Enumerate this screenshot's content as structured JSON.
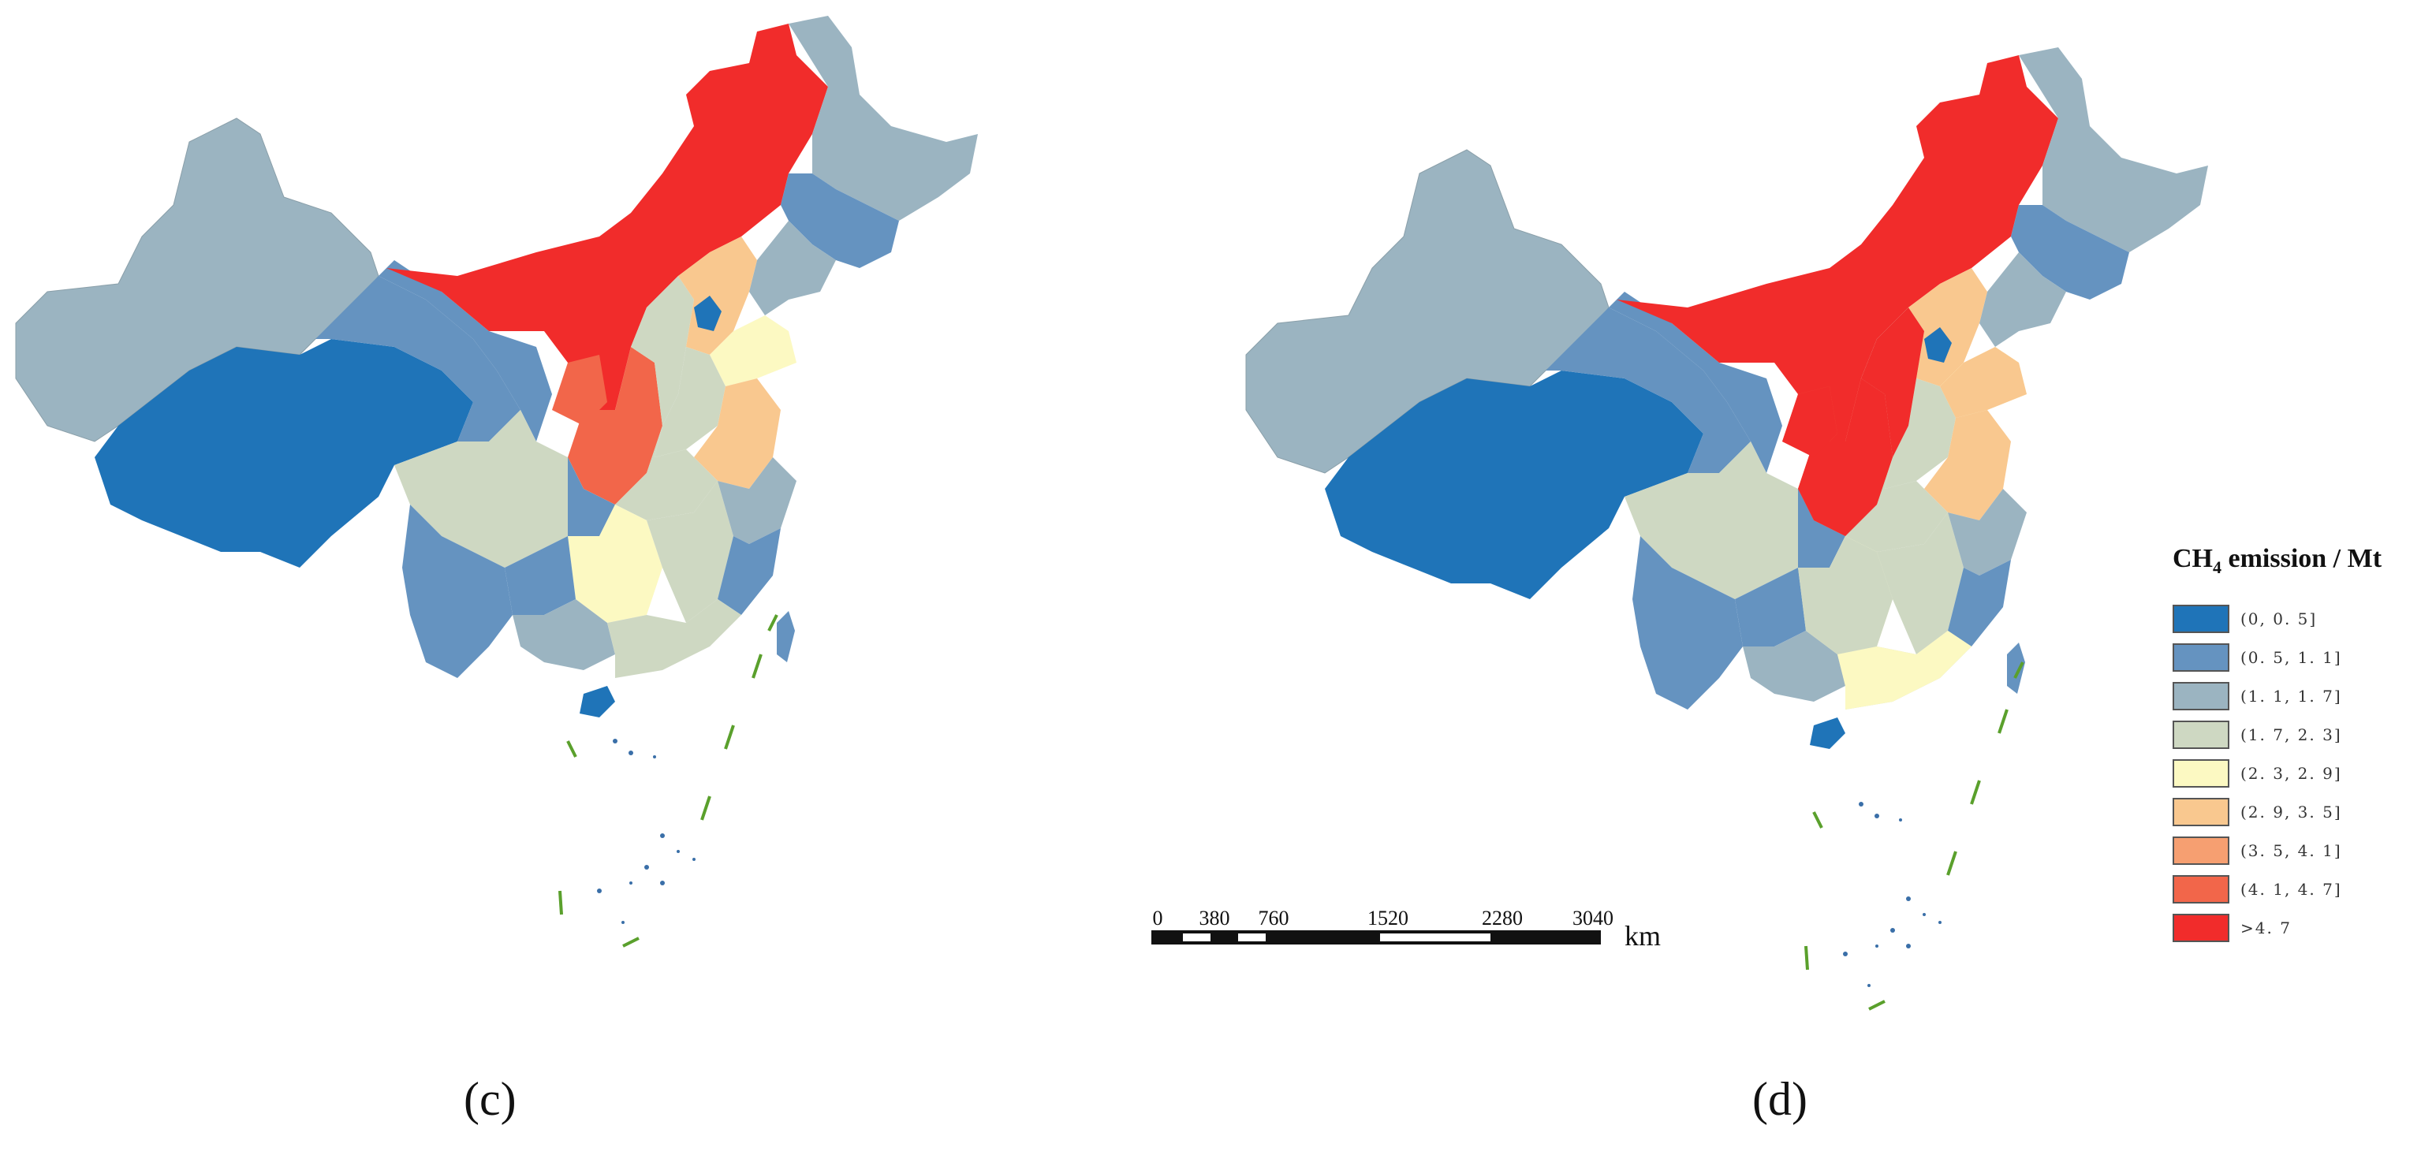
{
  "panels": [
    {
      "label": "(c)"
    },
    {
      "label": "(d)"
    }
  ],
  "legend": {
    "title_prefix": "CH",
    "title_sub": "4",
    "title_suffix": " emission / Mt",
    "classes": [
      {
        "label": "(0, 0. 5]",
        "color": "#1f74b8"
      },
      {
        "label": "(0. 5, 1. 1]",
        "color": "#6593c0"
      },
      {
        "label": "(1. 1, 1. 7]",
        "color": "#9bb4c1"
      },
      {
        "label": "(1. 7, 2. 3]",
        "color": "#ced8c2"
      },
      {
        "label": "(2. 3, 2. 9]",
        "color": "#fcf9c2"
      },
      {
        "label": "(2. 9, 3. 5]",
        "color": "#f9c88f"
      },
      {
        "label": "(3. 5, 4. 1]",
        "color": "#f69f71"
      },
      {
        "label": "(4. 1, 4. 7]",
        "color": "#f2664a"
      },
      {
        "label": ">4. 7",
        "color": "#f12c2b"
      }
    ]
  },
  "scale_bar": {
    "ticks": [
      "0",
      "380",
      "760",
      "1520",
      "2280",
      "3040"
    ],
    "unit": "km"
  },
  "boundary_color": "#5aa02c"
}
